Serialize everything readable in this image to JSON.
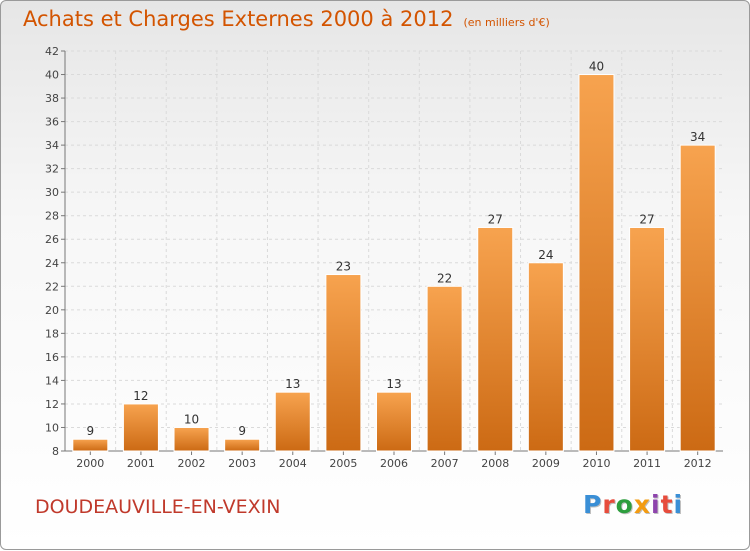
{
  "header": {
    "title": "Achats et Charges Externes 2000 à 2012",
    "subtitle": "(en milliers d'€)"
  },
  "footer": {
    "commune": "DOUDEAUVILLE-EN-VEXIN",
    "logo_text": "Proxiti",
    "logo_colors": [
      "#3a8fd6",
      "#e74c3c",
      "#2e9e3e",
      "#f39c12",
      "#8e44ad",
      "#e74c3c",
      "#3a8fd6"
    ]
  },
  "chart_data": {
    "type": "bar",
    "title": "Achats et Charges Externes 2000 à 2012",
    "subtitle": "(en milliers d'€)",
    "categories": [
      "2000",
      "2001",
      "2002",
      "2003",
      "2004",
      "2005",
      "2006",
      "2007",
      "2008",
      "2009",
      "2010",
      "2011",
      "2012"
    ],
    "values": [
      9,
      12,
      10,
      9,
      13,
      23,
      13,
      22,
      27,
      24,
      40,
      27,
      34
    ],
    "ylim": [
      8,
      42
    ],
    "yticks": [
      8,
      10,
      12,
      14,
      16,
      18,
      20,
      22,
      24,
      26,
      28,
      30,
      32,
      34,
      36,
      38,
      40,
      42
    ],
    "grid": true,
    "bar_color_top": "#f7a34f",
    "bar_color_bottom": "#cc6a14",
    "label_color": "#333333"
  }
}
